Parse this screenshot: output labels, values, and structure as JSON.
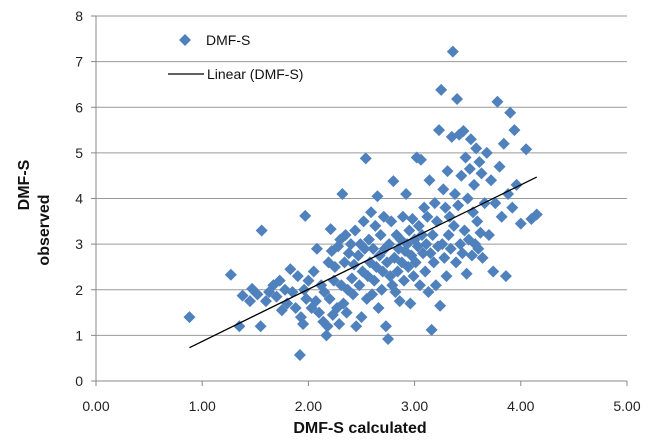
{
  "chart_data": {
    "type": "scatter",
    "xlabel": "DMF-S calculated",
    "ylabel_lines": [
      "DMF-S",
      "observed"
    ],
    "xlim": [
      0,
      5
    ],
    "ylim": [
      0,
      8
    ],
    "x_ticks": [
      "0.00",
      "1.00",
      "2.00",
      "3.00",
      "4.00",
      "5.00"
    ],
    "y_ticks": [
      "0",
      "1",
      "2",
      "3",
      "4",
      "5",
      "6",
      "7",
      "8"
    ],
    "grid": "horizontal",
    "legend_position": "top-left",
    "colors": {
      "points": "#4f81bd",
      "trend": "#000000",
      "grid": "#9a9a9a"
    },
    "series": [
      {
        "name": "DMF-S",
        "marker": "diamond",
        "points": [
          [
            0.88,
            1.4
          ],
          [
            1.27,
            2.33
          ],
          [
            1.35,
            1.2
          ],
          [
            1.38,
            1.87
          ],
          [
            1.45,
            1.75
          ],
          [
            1.47,
            2.02
          ],
          [
            1.52,
            1.9
          ],
          [
            1.55,
            1.2
          ],
          [
            1.56,
            3.3
          ],
          [
            1.6,
            1.75
          ],
          [
            1.63,
            1.95
          ],
          [
            1.67,
            2.1
          ],
          [
            1.7,
            1.85
          ],
          [
            1.73,
            2.2
          ],
          [
            1.75,
            1.55
          ],
          [
            1.78,
            2.0
          ],
          [
            1.8,
            1.7
          ],
          [
            1.83,
            2.45
          ],
          [
            1.85,
            1.95
          ],
          [
            1.88,
            1.6
          ],
          [
            1.9,
            2.3
          ],
          [
            1.92,
            0.57
          ],
          [
            1.93,
            1.4
          ],
          [
            1.95,
            1.25
          ],
          [
            1.96,
            2.0
          ],
          [
            1.97,
            3.62
          ],
          [
            1.98,
            1.8
          ],
          [
            2.0,
            2.2
          ],
          [
            2.03,
            1.6
          ],
          [
            2.05,
            2.4
          ],
          [
            2.07,
            1.75
          ],
          [
            2.08,
            2.9
          ],
          [
            2.1,
            1.5
          ],
          [
            2.12,
            2.1
          ],
          [
            2.14,
            1.3
          ],
          [
            2.15,
            1.95
          ],
          [
            2.17,
            1.0
          ],
          [
            2.18,
            1.2
          ],
          [
            2.19,
            2.6
          ],
          [
            2.2,
            1.8
          ],
          [
            2.21,
            3.33
          ],
          [
            2.22,
            2.85
          ],
          [
            2.23,
            1.45
          ],
          [
            2.24,
            2.2
          ],
          [
            2.25,
            2.5
          ],
          [
            2.27,
            1.6
          ],
          [
            2.28,
            2.95
          ],
          [
            2.29,
            1.25
          ],
          [
            2.3,
            3.1
          ],
          [
            2.31,
            2.1
          ],
          [
            2.32,
            4.1
          ],
          [
            2.33,
            1.7
          ],
          [
            2.34,
            2.6
          ],
          [
            2.35,
            3.2
          ],
          [
            2.36,
            1.5
          ],
          [
            2.37,
            2.0
          ],
          [
            2.38,
            2.8
          ],
          [
            2.4,
            3.0
          ],
          [
            2.41,
            2.25
          ],
          [
            2.42,
            1.9
          ],
          [
            2.43,
            2.55
          ],
          [
            2.44,
            3.3
          ],
          [
            2.45,
            1.2
          ],
          [
            2.47,
            2.75
          ],
          [
            2.48,
            2.1
          ],
          [
            2.49,
            3.0
          ],
          [
            2.5,
            1.4
          ],
          [
            2.51,
            2.4
          ],
          [
            2.52,
            3.5
          ],
          [
            2.53,
            2.9
          ],
          [
            2.54,
            4.88
          ],
          [
            2.55,
            1.8
          ],
          [
            2.56,
            2.3
          ],
          [
            2.57,
            3.1
          ],
          [
            2.58,
            2.6
          ],
          [
            2.59,
            3.7
          ],
          [
            2.6,
            1.9
          ],
          [
            2.61,
            2.9
          ],
          [
            2.62,
            2.2
          ],
          [
            2.63,
            3.4
          ],
          [
            2.64,
            2.5
          ],
          [
            2.65,
            4.05
          ],
          [
            2.66,
            1.6
          ],
          [
            2.67,
            2.75
          ],
          [
            2.68,
            3.2
          ],
          [
            2.69,
            2.0
          ],
          [
            2.7,
            2.4
          ],
          [
            2.71,
            3.6
          ],
          [
            2.72,
            2.9
          ],
          [
            2.73,
            1.2
          ],
          [
            2.74,
            2.6
          ],
          [
            2.75,
            0.92
          ],
          [
            2.76,
            3.0
          ],
          [
            2.77,
            2.3
          ],
          [
            2.78,
            3.5
          ],
          [
            2.79,
            2.1
          ],
          [
            2.8,
            4.38
          ],
          [
            2.81,
            2.7
          ],
          [
            2.82,
            1.95
          ],
          [
            2.83,
            3.2
          ],
          [
            2.84,
            2.4
          ],
          [
            2.85,
            2.9
          ],
          [
            2.86,
            1.75
          ],
          [
            2.87,
            3.1
          ],
          [
            2.88,
            2.6
          ],
          [
            2.89,
            3.6
          ],
          [
            2.9,
            2.2
          ],
          [
            2.91,
            2.85
          ],
          [
            2.92,
            4.1
          ],
          [
            2.93,
            3.0
          ],
          [
            2.94,
            2.5
          ],
          [
            2.95,
            3.3
          ],
          [
            2.96,
            1.7
          ],
          [
            2.97,
            2.75
          ],
          [
            2.98,
            3.55
          ],
          [
            2.99,
            2.3
          ],
          [
            3.0,
            3.1
          ],
          [
            3.01,
            2.6
          ],
          [
            3.02,
            4.9
          ],
          [
            3.03,
            2.95
          ],
          [
            3.04,
            3.4
          ],
          [
            3.05,
            2.1
          ],
          [
            3.06,
            4.85
          ],
          [
            3.07,
            3.2
          ],
          [
            3.08,
            2.8
          ],
          [
            3.09,
            3.8
          ],
          [
            3.1,
            2.4
          ],
          [
            3.11,
            3.0
          ],
          [
            3.12,
            3.6
          ],
          [
            3.13,
            1.95
          ],
          [
            3.14,
            4.4
          ],
          [
            3.15,
            2.8
          ],
          [
            3.16,
            1.12
          ],
          [
            3.17,
            3.2
          ],
          [
            3.18,
            2.6
          ],
          [
            3.19,
            3.9
          ],
          [
            3.2,
            2.1
          ],
          [
            3.21,
            3.5
          ],
          [
            3.22,
            2.95
          ],
          [
            3.23,
            5.5
          ],
          [
            3.24,
            1.65
          ],
          [
            3.25,
            6.38
          ],
          [
            3.26,
            3.0
          ],
          [
            3.27,
            4.2
          ],
          [
            3.28,
            2.7
          ],
          [
            3.29,
            3.8
          ],
          [
            3.3,
            2.3
          ],
          [
            3.31,
            4.6
          ],
          [
            3.32,
            3.2
          ],
          [
            3.33,
            3.6
          ],
          [
            3.34,
            2.9
          ],
          [
            3.35,
            5.35
          ],
          [
            3.36,
            7.22
          ],
          [
            3.37,
            3.4
          ],
          [
            3.38,
            4.1
          ],
          [
            3.39,
            2.6
          ],
          [
            3.4,
            6.18
          ],
          [
            3.41,
            3.85
          ],
          [
            3.42,
            5.4
          ],
          [
            3.43,
            3.0
          ],
          [
            3.44,
            4.5
          ],
          [
            3.45,
            2.8
          ],
          [
            3.46,
            5.48
          ],
          [
            3.47,
            3.3
          ],
          [
            3.48,
            4.9
          ],
          [
            3.49,
            2.35
          ],
          [
            3.5,
            4.0
          ],
          [
            3.51,
            3.1
          ],
          [
            3.52,
            4.65
          ],
          [
            3.53,
            5.3
          ],
          [
            3.54,
            2.75
          ],
          [
            3.55,
            3.7
          ],
          [
            3.56,
            4.3
          ],
          [
            3.57,
            3.0
          ],
          [
            3.58,
            5.1
          ],
          [
            3.59,
            3.5
          ],
          [
            3.6,
            2.9
          ],
          [
            3.61,
            4.8
          ],
          [
            3.62,
            3.25
          ],
          [
            3.63,
            4.55
          ],
          [
            3.64,
            2.7
          ],
          [
            3.66,
            3.9
          ],
          [
            3.68,
            5.0
          ],
          [
            3.7,
            3.2
          ],
          [
            3.72,
            4.4
          ],
          [
            3.74,
            2.4
          ],
          [
            3.76,
            3.9
          ],
          [
            3.78,
            6.12
          ],
          [
            3.8,
            4.7
          ],
          [
            3.82,
            3.6
          ],
          [
            3.84,
            5.2
          ],
          [
            3.86,
            2.3
          ],
          [
            3.88,
            4.1
          ],
          [
            3.9,
            5.88
          ],
          [
            3.92,
            3.8
          ],
          [
            3.94,
            5.5
          ],
          [
            3.96,
            4.3
          ],
          [
            4.0,
            3.45
          ],
          [
            4.05,
            5.08
          ],
          [
            4.1,
            3.55
          ],
          [
            4.15,
            3.65
          ]
        ]
      },
      {
        "name": "Linear (DMF-S)",
        "marker": "line",
        "x": [
          0.88,
          4.15
        ],
        "y": [
          0.73,
          4.47
        ]
      }
    ]
  }
}
